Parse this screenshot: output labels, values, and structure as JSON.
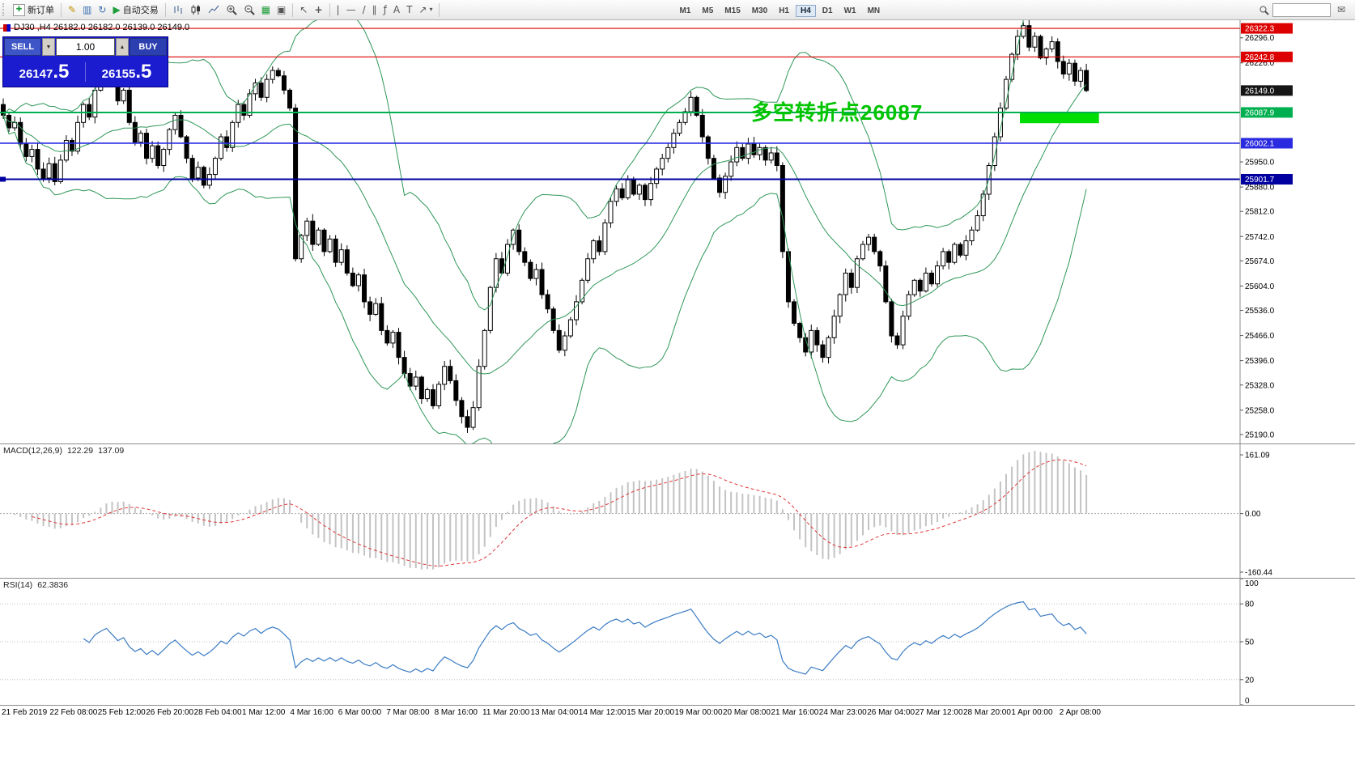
{
  "toolbar": {
    "new_order_label": "新订单",
    "auto_trading_label": "自动交易",
    "timeframes": [
      "M1",
      "M5",
      "M15",
      "M30",
      "H1",
      "H4",
      "D1",
      "W1",
      "MN"
    ],
    "active_timeframe": "H4",
    "search_value": ""
  },
  "icons": {
    "new_order_plus": "✚",
    "metaeditor": "✎",
    "market_watch": "▥",
    "refresh": "↻",
    "play": "▶",
    "caret_down": "▼",
    "caret_up": "▲",
    "cursor": "↖",
    "crosshair": "+",
    "vline": "|",
    "hline": "—",
    "trendline": "/",
    "channel": "∥",
    "fibonacci": "ƒ",
    "text": "A",
    "label": "T",
    "arrow": "↗",
    "dropdown": "▾",
    "indicators": "▦",
    "tile": "▣",
    "mailbox": "✉"
  },
  "chart": {
    "title": "DJ30 ,H4  26182.0 26182.0 26139.0 26149.0",
    "annotation": {
      "text": "多空转折点26087",
      "color": "#00c400"
    },
    "trade_panel": {
      "sell_label": "SELL",
      "buy_label": "BUY",
      "volume": "1.00",
      "sell_price_main": "26147",
      "sell_price_big": ".5",
      "buy_price_main": "26155",
      "buy_price_big": ".5"
    },
    "price_axis": {
      "domain_max": 26345,
      "domain_min": 25165,
      "ticks": [
        "26296.0",
        "26226.0",
        "25950.0",
        "25880.0",
        "25812.0",
        "25742.0",
        "25674.0",
        "25604.0",
        "25536.0",
        "25466.0",
        "25396.0",
        "25328.0",
        "25258.0",
        "25190.0"
      ],
      "marker_boxes": [
        {
          "label": "26322.3",
          "price": 26322.3,
          "bg": "#dd0000",
          "fg": "#ffffff"
        },
        {
          "label": "26242.8",
          "price": 26242.8,
          "bg": "#dd0000",
          "fg": "#ffffff"
        },
        {
          "label": "26149.0",
          "price": 26149.0,
          "bg": "#151515",
          "fg": "#ffffff"
        },
        {
          "label": "26087.9",
          "price": 26087.9,
          "bg": "#00b050",
          "fg": "#ffffff"
        },
        {
          "label": "26002.1",
          "price": 26002.1,
          "bg": "#2a2ae0",
          "fg": "#ffffff"
        },
        {
          "label": "25901.7",
          "price": 25901.7,
          "bg": "#0000a0",
          "fg": "#ffffff"
        }
      ]
    },
    "hlines": [
      {
        "price": 26322.3,
        "color": "#dd0000",
        "width": 1.2,
        "handle": false
      },
      {
        "price": 26242.8,
        "color": "#dd0000",
        "width": 1.2,
        "handle": false
      },
      {
        "price": 26087.9,
        "color": "#00b050",
        "width": 2,
        "handle": false
      },
      {
        "price": 26002.1,
        "color": "#2a2ae0",
        "width": 1.6,
        "handle": false
      },
      {
        "price": 25901.7,
        "color": "#0000a0",
        "width": 2,
        "handle": true
      }
    ],
    "green_zone": {
      "price_top": 26090,
      "price_bottom": 26058,
      "from_candle": 177.4,
      "to_candle": 191.2,
      "color": "#00dd00"
    }
  },
  "chart_data": {
    "type": "candlestick",
    "symbol": "DJ30",
    "timeframe": "H4",
    "overlays": [
      "Bollinger Bands"
    ],
    "bollinger": {
      "period": 20,
      "deviation": 2
    },
    "closes": [
      26080,
      26045,
      26060,
      26000,
      25965,
      25985,
      25930,
      25905,
      25945,
      25895,
      25955,
      26010,
      25980,
      26060,
      26110,
      26075,
      26150,
      26190,
      26225,
      26175,
      26120,
      26150,
      26060,
      26005,
      26030,
      25960,
      25995,
      25940,
      25985,
      26040,
      26080,
      26020,
      25960,
      25905,
      25935,
      25885,
      25915,
      25960,
      26020,
      25990,
      26060,
      26110,
      26080,
      26140,
      26170,
      26130,
      26180,
      26205,
      26190,
      26150,
      26100,
      25680,
      25745,
      25785,
      25720,
      25760,
      25700,
      25735,
      25670,
      25705,
      25640,
      25605,
      25635,
      25560,
      25525,
      25555,
      25480,
      25445,
      25475,
      25405,
      25360,
      25325,
      25350,
      25290,
      25315,
      25270,
      25330,
      25380,
      25340,
      25285,
      25240,
      25210,
      25265,
      25380,
      25480,
      25600,
      25680,
      25640,
      25720,
      25760,
      25700,
      25670,
      25625,
      25650,
      25580,
      25540,
      25480,
      25425,
      25465,
      25510,
      25560,
      25620,
      25680,
      25730,
      25700,
      25780,
      25840,
      25875,
      25850,
      25900,
      25860,
      25885,
      25845,
      25890,
      25930,
      25960,
      25990,
      26030,
      26060,
      26090,
      26130,
      26080,
      26020,
      25960,
      25905,
      25865,
      25910,
      25950,
      25990,
      25960,
      26000,
      25970,
      25990,
      25955,
      25975,
      25940,
      25700,
      25560,
      25500,
      25460,
      25420,
      25480,
      25440,
      25405,
      25460,
      25520,
      25580,
      25640,
      25600,
      25680,
      25720,
      25740,
      25700,
      25660,
      25560,
      25465,
      25440,
      25520,
      25580,
      25620,
      25590,
      25640,
      25610,
      25660,
      25700,
      25670,
      25720,
      25690,
      25730,
      25760,
      25800,
      25860,
      25940,
      26020,
      26100,
      26180,
      26250,
      26300,
      26330,
      26270,
      26300,
      26240,
      26265,
      26285,
      26230,
      26195,
      26225,
      26175,
      26205,
      26149
    ],
    "time_labels": [
      "21 Feb 2019",
      "22 Feb 08:00",
      "25 Feb 12:00",
      "26 Feb 20:00",
      "28 Feb 04:00",
      "1 Mar 12:00",
      "4 Mar 16:00",
      "6 Mar 00:00",
      "7 Mar 08:00",
      "8 Mar 16:00",
      "11 Mar 20:00",
      "13 Mar 04:00",
      "14 Mar 12:00",
      "15 Mar 20:00",
      "19 Mar 00:00",
      "20 Mar 08:00",
      "21 Mar 16:00",
      "24 Mar 23:00",
      "26 Mar 04:00",
      "27 Mar 12:00",
      "28 Mar 20:00",
      "1 Apr 00:00",
      "2 Apr 08:00"
    ]
  },
  "macd_panel": {
    "name": "MACD(12,26,9)",
    "macd_value": "122.29",
    "signal_value": "137.09",
    "fast": 12,
    "slow": 26,
    "signal": 9,
    "domain_max": 190,
    "domain_min": -176,
    "ticks": [
      {
        "label": "161.09",
        "value": 161.09
      },
      {
        "label": "0.00",
        "value": 0
      },
      {
        "label": "-160.44",
        "value": -160.44
      }
    ]
  },
  "rsi_panel": {
    "name": "RSI(14)",
    "value": "62.3836",
    "period": 14,
    "levels": [
      80,
      50,
      20
    ],
    "ticks": [
      {
        "label": "100",
        "value": 100
      },
      {
        "label": "80",
        "value": 80
      },
      {
        "label": "50",
        "value": 50
      },
      {
        "label": "20",
        "value": 20
      },
      {
        "label": "0",
        "value": 0
      }
    ]
  }
}
